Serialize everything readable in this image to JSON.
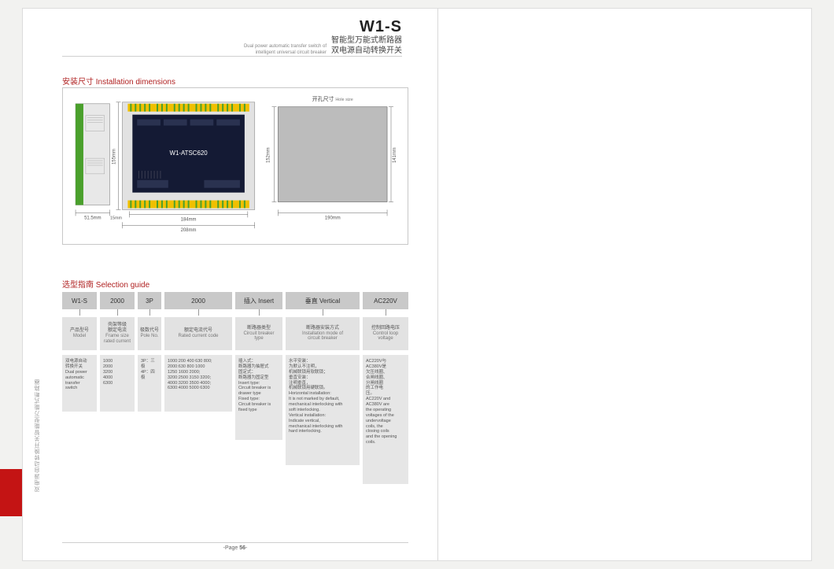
{
  "header": {
    "model": "W1-S",
    "cn_line1": "智能型万能式断路器",
    "cn_line2": "双电源自动转换开关",
    "en_line1": "Dual power automatic transfer switch of",
    "en_line2": "intelligent universal circuit breaker"
  },
  "sections": {
    "dims_title": "安装尺寸 Installation dimensions",
    "guide_title": "选型指南 Selection guide"
  },
  "diagram": {
    "device_label": "W1-ATSC620",
    "hole_title_cn": "开孔尺寸",
    "hole_title_en": "Hole size",
    "dims": {
      "left_w": "51.5mm",
      "gap": "15mm",
      "face_w": "184mm",
      "overall_w": "208mm",
      "h_left": "155mm",
      "hole_w": "190mm",
      "hole_h_left": "152mm",
      "hole_h_right": "141mm"
    },
    "colors": {
      "frame": "#8a8a8a",
      "device_bg": "#141a34",
      "device_text": "#ffffff",
      "bracket": "#a0a0a0",
      "terminal_green": "#4aa02c",
      "terminal_yellow": "#f0c000",
      "hole_fill": "#bcbcbc",
      "dim_line": "#606060"
    }
  },
  "guide": {
    "widths": [
      44,
      44,
      30,
      86,
      60,
      94,
      58
    ],
    "top": [
      "W1-S",
      "2000",
      "3P",
      "2000",
      "插入 Insert",
      "垂直 Vertical",
      "AC220V"
    ],
    "labels": [
      {
        "cn": "产品型号",
        "en": "Model"
      },
      {
        "cn": "壳架等级\n额定电流",
        "en": "Frame size\nrated current"
      },
      {
        "cn": "极数代号",
        "en": "Pole No."
      },
      {
        "cn": "额定电流代号",
        "en": "Rated current code"
      },
      {
        "cn": "断路器类型",
        "en": "Circuit breaker\ntype"
      },
      {
        "cn": "断路器安装方式",
        "en": "Installation mode of\ncircuit breaker"
      },
      {
        "cn": "控制回路电压",
        "en": "Control loop\nvoltage"
      }
    ],
    "desc_heights": [
      72,
      72,
      72,
      72,
      108,
      140,
      164
    ],
    "desc": [
      "双电源自动\n转换开关\nDual power\nautomatic\ntransfer\nswitch",
      "1000\n2000\n3200\n4000\n6300",
      "3P：三极\n4P：四极",
      "1000:200 400 630 800;\n2000:630 800 1000\n   1250 1600 2000;\n3200:2500 3150 3200;\n4000:3200 3500 4000;\n6300:4000 5000 6300",
      "插入式：\n断路器为抽屉式\n固定式：\n断路器为固定型\nInsert type:\nCircuit breaker is\ndrawer type\nFixed type:\nCircuit breaker is\nfixed type",
      "水平安装：\n为默认不注明，\n机械联锁用软联锁；\n垂直安装：\n注明垂直，\n机械联锁用硬联锁。\nHorizontal installation:\nIt is not marked by default,\nmechanical interlocking with\nsoft interlocking.\nVertical installation:\nIndicate vertical,\nmechanical interlocking with\nhard interlocking.",
      "AC220V与\nAC380V是\n欠压线圈、\n合闸线圈、\n分闸线圈\n的工作电\n压。\nAC220V and\nAC380V are\nthe operating\nvoltages of the\nundervoltage\ncoils, the\nclosing coils\nand the opening\ncoils."
    ]
  },
  "side_label": "双电源自动转换开关智能型万能式断路器",
  "page_number": "56",
  "page_prefix": "-Page ",
  "page_suffix": "-"
}
